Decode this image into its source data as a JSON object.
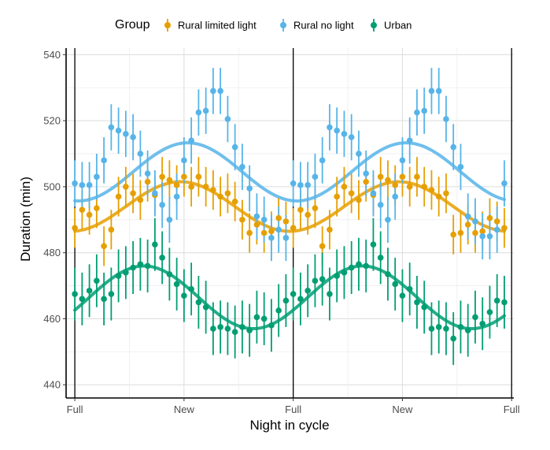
{
  "chart_data": {
    "type": "scatter",
    "title": "",
    "xlabel": "Night in cycle",
    "ylabel": "Duration (min)",
    "ylim": [
      436,
      542
    ],
    "xlim": [
      -1.2,
      60.3
    ],
    "y_ticks": [
      440,
      460,
      480,
      500,
      520,
      540
    ],
    "x_ticks": [
      {
        "x": 0,
        "label": "Full"
      },
      {
        "x": 15,
        "label": "New"
      },
      {
        "x": 30,
        "label": "Full"
      },
      {
        "x": 45,
        "label": "New"
      },
      {
        "x": 60,
        "label": "Full"
      }
    ],
    "full_moon_lines": [
      0,
      30,
      60
    ],
    "grid": true,
    "legend": {
      "title": "Group",
      "position": "top"
    },
    "series": [
      {
        "name": "Rural limited light",
        "color": "#E69F00",
        "points": [
          {
            "x": 0,
            "y": 487.5,
            "err": 6
          },
          {
            "x": 1,
            "y": 493,
            "err": 6
          },
          {
            "x": 2,
            "y": 491.5,
            "err": 6
          },
          {
            "x": 3,
            "y": 493.5,
            "err": 6
          },
          {
            "x": 4,
            "y": 482,
            "err": 6
          },
          {
            "x": 5,
            "y": 487,
            "err": 6
          },
          {
            "x": 6,
            "y": 497,
            "err": 6
          },
          {
            "x": 7,
            "y": 500,
            "err": 6
          },
          {
            "x": 8,
            "y": 498,
            "err": 6
          },
          {
            "x": 9,
            "y": 496,
            "err": 6
          },
          {
            "x": 10,
            "y": 501.5,
            "err": 6
          },
          {
            "x": 11,
            "y": 497.5,
            "err": 6
          },
          {
            "x": 12,
            "y": 503,
            "err": 6
          },
          {
            "x": 13,
            "y": 502,
            "err": 6
          },
          {
            "x": 14,
            "y": 500.5,
            "err": 6
          },
          {
            "x": 15,
            "y": 503,
            "err": 6
          },
          {
            "x": 16,
            "y": 500,
            "err": 6
          },
          {
            "x": 17,
            "y": 503,
            "err": 6
          },
          {
            "x": 18,
            "y": 500,
            "err": 6
          },
          {
            "x": 19,
            "y": 499,
            "err": 6
          },
          {
            "x": 20,
            "y": 497,
            "err": 6
          },
          {
            "x": 21,
            "y": 498,
            "err": 6
          },
          {
            "x": 22,
            "y": 495.5,
            "err": 6
          },
          {
            "x": 23,
            "y": 490,
            "err": 6
          },
          {
            "x": 24,
            "y": 486,
            "err": 6
          },
          {
            "x": 25,
            "y": 488.5,
            "err": 6
          },
          {
            "x": 26,
            "y": 486,
            "err": 6
          },
          {
            "x": 27,
            "y": 486.5,
            "err": 6
          },
          {
            "x": 28,
            "y": 490.5,
            "err": 6
          },
          {
            "x": 29,
            "y": 489.5,
            "err": 6
          },
          {
            "x": 30,
            "y": 487.5,
            "err": 6
          },
          {
            "x": 31,
            "y": 493,
            "err": 6
          },
          {
            "x": 32,
            "y": 491.5,
            "err": 6
          },
          {
            "x": 33,
            "y": 493.5,
            "err": 6
          },
          {
            "x": 34,
            "y": 482,
            "err": 6
          },
          {
            "x": 35,
            "y": 487,
            "err": 6
          },
          {
            "x": 36,
            "y": 497,
            "err": 6
          },
          {
            "x": 37,
            "y": 500,
            "err": 6
          },
          {
            "x": 38,
            "y": 498,
            "err": 6
          },
          {
            "x": 39,
            "y": 496,
            "err": 6
          },
          {
            "x": 40,
            "y": 501.5,
            "err": 6
          },
          {
            "x": 41,
            "y": 497.5,
            "err": 6
          },
          {
            "x": 42,
            "y": 503,
            "err": 6
          },
          {
            "x": 43,
            "y": 502,
            "err": 6
          },
          {
            "x": 44,
            "y": 500.5,
            "err": 6
          },
          {
            "x": 45,
            "y": 503,
            "err": 6
          },
          {
            "x": 46,
            "y": 500,
            "err": 6
          },
          {
            "x": 47,
            "y": 503,
            "err": 6
          },
          {
            "x": 48,
            "y": 500,
            "err": 6
          },
          {
            "x": 49,
            "y": 499,
            "err": 6
          },
          {
            "x": 50,
            "y": 497,
            "err": 6
          },
          {
            "x": 51,
            "y": 498,
            "err": 6
          },
          {
            "x": 52,
            "y": 485.5,
            "err": 6
          },
          {
            "x": 53,
            "y": 486,
            "err": 6
          },
          {
            "x": 54,
            "y": 488.5,
            "err": 6
          },
          {
            "x": 55,
            "y": 486,
            "err": 6
          },
          {
            "x": 56,
            "y": 486.5,
            "err": 6
          },
          {
            "x": 57,
            "y": 490.5,
            "err": 6
          },
          {
            "x": 58,
            "y": 489.5,
            "err": 6
          },
          {
            "x": 59,
            "y": 487.5,
            "err": 6
          }
        ],
        "fit": {
          "mean": 494,
          "amplitude": 7.5,
          "peak_x": 14.5
        }
      },
      {
        "name": "Rural no light",
        "color": "#56B4E9",
        "points": [
          {
            "x": 0,
            "y": 501,
            "err": 7
          },
          {
            "x": 1,
            "y": 500.5,
            "err": 7
          },
          {
            "x": 2,
            "y": 500.5,
            "err": 7
          },
          {
            "x": 3,
            "y": 503,
            "err": 7
          },
          {
            "x": 4,
            "y": 508,
            "err": 7
          },
          {
            "x": 5,
            "y": 518,
            "err": 7
          },
          {
            "x": 6,
            "y": 517,
            "err": 7
          },
          {
            "x": 7,
            "y": 516,
            "err": 7
          },
          {
            "x": 8,
            "y": 515,
            "err": 7
          },
          {
            "x": 9,
            "y": 510,
            "err": 7
          },
          {
            "x": 10,
            "y": 504,
            "err": 7
          },
          {
            "x": 11,
            "y": 498,
            "err": 7
          },
          {
            "x": 12,
            "y": 494.5,
            "err": 7
          },
          {
            "x": 13,
            "y": 490,
            "err": 7
          },
          {
            "x": 14,
            "y": 497,
            "err": 7
          },
          {
            "x": 15,
            "y": 508,
            "err": 7
          },
          {
            "x": 16,
            "y": 514,
            "err": 7
          },
          {
            "x": 17,
            "y": 522.5,
            "err": 7
          },
          {
            "x": 18,
            "y": 523,
            "err": 7
          },
          {
            "x": 19,
            "y": 529,
            "err": 7
          },
          {
            "x": 20,
            "y": 529,
            "err": 7
          },
          {
            "x": 21,
            "y": 520.5,
            "err": 7
          },
          {
            "x": 22,
            "y": 512,
            "err": 7
          },
          {
            "x": 23,
            "y": 506,
            "err": 7
          },
          {
            "x": 24,
            "y": 499.5,
            "err": 7
          },
          {
            "x": 25,
            "y": 491,
            "err": 7
          },
          {
            "x": 26,
            "y": 490,
            "err": 7
          },
          {
            "x": 27,
            "y": 484.5,
            "err": 7
          },
          {
            "x": 28,
            "y": 487,
            "err": 7
          },
          {
            "x": 29,
            "y": 484.5,
            "err": 7
          },
          {
            "x": 30,
            "y": 501,
            "err": 7
          },
          {
            "x": 31,
            "y": 500.5,
            "err": 7
          },
          {
            "x": 32,
            "y": 500.5,
            "err": 7
          },
          {
            "x": 33,
            "y": 503,
            "err": 7
          },
          {
            "x": 34,
            "y": 508,
            "err": 7
          },
          {
            "x": 35,
            "y": 518,
            "err": 7
          },
          {
            "x": 36,
            "y": 517,
            "err": 7
          },
          {
            "x": 37,
            "y": 516,
            "err": 7
          },
          {
            "x": 38,
            "y": 515,
            "err": 7
          },
          {
            "x": 39,
            "y": 510,
            "err": 7
          },
          {
            "x": 40,
            "y": 504,
            "err": 7
          },
          {
            "x": 41,
            "y": 498,
            "err": 7
          },
          {
            "x": 42,
            "y": 494.5,
            "err": 7
          },
          {
            "x": 43,
            "y": 490,
            "err": 7
          },
          {
            "x": 44,
            "y": 497,
            "err": 7
          },
          {
            "x": 45,
            "y": 508,
            "err": 7
          },
          {
            "x": 46,
            "y": 514,
            "err": 7
          },
          {
            "x": 47,
            "y": 522.5,
            "err": 7
          },
          {
            "x": 48,
            "y": 523,
            "err": 7
          },
          {
            "x": 49,
            "y": 529,
            "err": 7
          },
          {
            "x": 50,
            "y": 529,
            "err": 7
          },
          {
            "x": 51,
            "y": 520.5,
            "err": 7
          },
          {
            "x": 52,
            "y": 512,
            "err": 7
          },
          {
            "x": 53,
            "y": 506,
            "err": 7
          },
          {
            "x": 54,
            "y": 491,
            "err": 7
          },
          {
            "x": 55,
            "y": 489.5,
            "err": 7
          },
          {
            "x": 56,
            "y": 485,
            "err": 7
          },
          {
            "x": 57,
            "y": 485,
            "err": 7
          },
          {
            "x": 58,
            "y": 487,
            "err": 7
          },
          {
            "x": 59,
            "y": 501,
            "err": 7
          }
        ],
        "fit": {
          "mean": 504.5,
          "amplitude": 8.8,
          "peak_x": 15.5
        }
      },
      {
        "name": "Urban",
        "color": "#009E73",
        "points": [
          {
            "x": 0,
            "y": 467.5,
            "err": 8
          },
          {
            "x": 1,
            "y": 466,
            "err": 8
          },
          {
            "x": 2,
            "y": 468.5,
            "err": 8
          },
          {
            "x": 3,
            "y": 471.5,
            "err": 8
          },
          {
            "x": 4,
            "y": 466,
            "err": 8
          },
          {
            "x": 5,
            "y": 467.5,
            "err": 8
          },
          {
            "x": 6,
            "y": 473,
            "err": 8
          },
          {
            "x": 7,
            "y": 474,
            "err": 8
          },
          {
            "x": 8,
            "y": 475.5,
            "err": 8
          },
          {
            "x": 9,
            "y": 476.5,
            "err": 8
          },
          {
            "x": 10,
            "y": 476,
            "err": 8
          },
          {
            "x": 11,
            "y": 482.5,
            "err": 8
          },
          {
            "x": 12,
            "y": 478.5,
            "err": 8
          },
          {
            "x": 13,
            "y": 473.5,
            "err": 8
          },
          {
            "x": 14,
            "y": 470.5,
            "err": 8
          },
          {
            "x": 15,
            "y": 467,
            "err": 8
          },
          {
            "x": 16,
            "y": 469,
            "err": 8
          },
          {
            "x": 17,
            "y": 465,
            "err": 8
          },
          {
            "x": 18,
            "y": 463.5,
            "err": 8
          },
          {
            "x": 19,
            "y": 457,
            "err": 8
          },
          {
            "x": 20,
            "y": 457.5,
            "err": 8
          },
          {
            "x": 21,
            "y": 457,
            "err": 8
          },
          {
            "x": 22,
            "y": 456,
            "err": 8
          },
          {
            "x": 23,
            "y": 457.5,
            "err": 8
          },
          {
            "x": 24,
            "y": 456.5,
            "err": 8
          },
          {
            "x": 25,
            "y": 460.5,
            "err": 8
          },
          {
            "x": 26,
            "y": 460,
            "err": 8
          },
          {
            "x": 27,
            "y": 458,
            "err": 8
          },
          {
            "x": 28,
            "y": 462.5,
            "err": 8
          },
          {
            "x": 29,
            "y": 465.5,
            "err": 8
          },
          {
            "x": 30,
            "y": 467.5,
            "err": 8
          },
          {
            "x": 31,
            "y": 466,
            "err": 8
          },
          {
            "x": 32,
            "y": 468.5,
            "err": 8
          },
          {
            "x": 33,
            "y": 471.5,
            "err": 8
          },
          {
            "x": 34,
            "y": 472,
            "err": 8
          },
          {
            "x": 35,
            "y": 467.5,
            "err": 8
          },
          {
            "x": 36,
            "y": 473,
            "err": 8
          },
          {
            "x": 37,
            "y": 474,
            "err": 8
          },
          {
            "x": 38,
            "y": 475.5,
            "err": 8
          },
          {
            "x": 39,
            "y": 476.5,
            "err": 8
          },
          {
            "x": 40,
            "y": 476,
            "err": 8
          },
          {
            "x": 41,
            "y": 482.5,
            "err": 8
          },
          {
            "x": 42,
            "y": 478.5,
            "err": 8
          },
          {
            "x": 43,
            "y": 473.5,
            "err": 8
          },
          {
            "x": 44,
            "y": 470.5,
            "err": 8
          },
          {
            "x": 45,
            "y": 467,
            "err": 8
          },
          {
            "x": 46,
            "y": 469,
            "err": 8
          },
          {
            "x": 47,
            "y": 465,
            "err": 8
          },
          {
            "x": 48,
            "y": 463.5,
            "err": 8
          },
          {
            "x": 49,
            "y": 457,
            "err": 8
          },
          {
            "x": 50,
            "y": 457.5,
            "err": 8
          },
          {
            "x": 51,
            "y": 457,
            "err": 8
          },
          {
            "x": 52,
            "y": 454,
            "err": 8
          },
          {
            "x": 53,
            "y": 457.5,
            "err": 8
          },
          {
            "x": 54,
            "y": 456.5,
            "err": 8
          },
          {
            "x": 55,
            "y": 460.5,
            "err": 8
          },
          {
            "x": 56,
            "y": 458.5,
            "err": 8
          },
          {
            "x": 57,
            "y": 462,
            "err": 8
          },
          {
            "x": 58,
            "y": 465.5,
            "err": 8
          },
          {
            "x": 59,
            "y": 465,
            "err": 8
          }
        ],
        "fit": {
          "mean": 466.5,
          "amplitude": 9.5,
          "peak_x": 9.5
        }
      }
    ]
  }
}
